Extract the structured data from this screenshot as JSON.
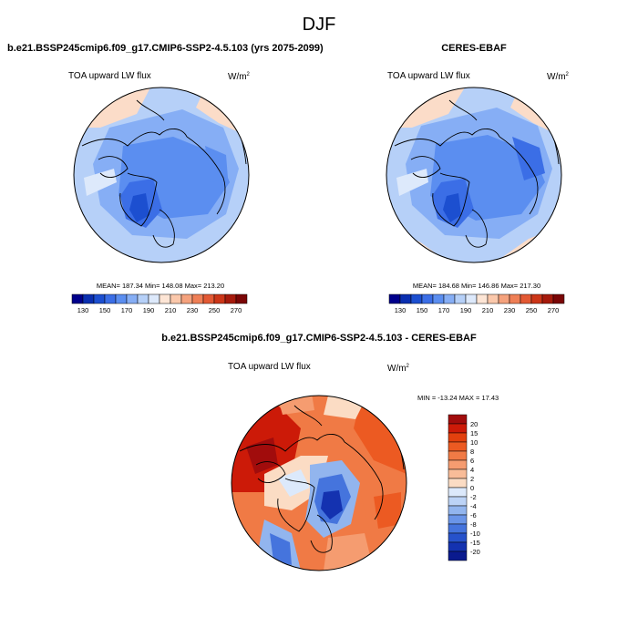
{
  "page_title": "DJF",
  "panels": [
    {
      "id": "model",
      "heading": "b.e21.BSSP245cmip6.f09_g17.CMIP6-SSP2-4.5.103 (yrs 2075-2099)",
      "variable": "TOA upward LW flux",
      "units_base": "W/m",
      "units_exp": "2",
      "stats": "MEAN= 187.34  Min= 148.08  Max= 213.20",
      "colorbar_ticks": [
        "130",
        "150",
        "170",
        "190",
        "210",
        "230",
        "250",
        "270"
      ],
      "colors": [
        "#00008b",
        "#0a2fb0",
        "#1c4fd0",
        "#3b6ee6",
        "#5b8ef0",
        "#86aef5",
        "#b6d0f8",
        "#dde9fb",
        "#fde5d5",
        "#fbc8ab",
        "#f5a27d",
        "#ef7f56",
        "#e35934",
        "#cc3618",
        "#a61a0c",
        "#7a0606"
      ],
      "map_note": "Arctic polar stereographic map of TOA upward longwave flux"
    },
    {
      "id": "obs",
      "heading": "CERES-EBAF",
      "variable": "TOA upward LW flux",
      "units_base": "W/m",
      "units_exp": "2",
      "stats": "MEAN= 184.68  Min= 146.86  Max= 217.30",
      "colorbar_ticks": [
        "130",
        "150",
        "170",
        "190",
        "210",
        "230",
        "250",
        "270"
      ],
      "colors": [
        "#00008b",
        "#0a2fb0",
        "#1c4fd0",
        "#3b6ee6",
        "#5b8ef0",
        "#86aef5",
        "#b6d0f8",
        "#dde9fb",
        "#fde5d5",
        "#fbc8ab",
        "#f5a27d",
        "#ef7f56",
        "#e35934",
        "#cc3618",
        "#a61a0c",
        "#7a0606"
      ],
      "map_note": "Arctic polar stereographic map of observed TOA upward longwave flux"
    },
    {
      "id": "diff",
      "heading": "b.e21.BSSP245cmip6.f09_g17.CMIP6-SSP2-4.5.103 - CERES-EBAF",
      "variable": "TOA upward LW flux",
      "units_base": "W/m",
      "units_exp": "2",
      "stats": "MIN = -13.24 MAX =  17.43",
      "colorbar_ticks": [
        "20",
        "15",
        "10",
        "8",
        "6",
        "4",
        "2",
        "0",
        "-2",
        "-4",
        "-6",
        "-8",
        "-10",
        "-15",
        "-20"
      ],
      "colors": [
        "#a10c0c",
        "#cc1a08",
        "#e2400e",
        "#ec5a22",
        "#f07a45",
        "#f59c70",
        "#f8bc98",
        "#fbdcc4",
        "#dce9fb",
        "#bcd3f6",
        "#92b5ee",
        "#6a95e8",
        "#4574dd",
        "#2752cb",
        "#1432b0",
        "#0a1a8e"
      ],
      "map_note": "Arctic polar stereographic map of model minus observation difference"
    }
  ]
}
